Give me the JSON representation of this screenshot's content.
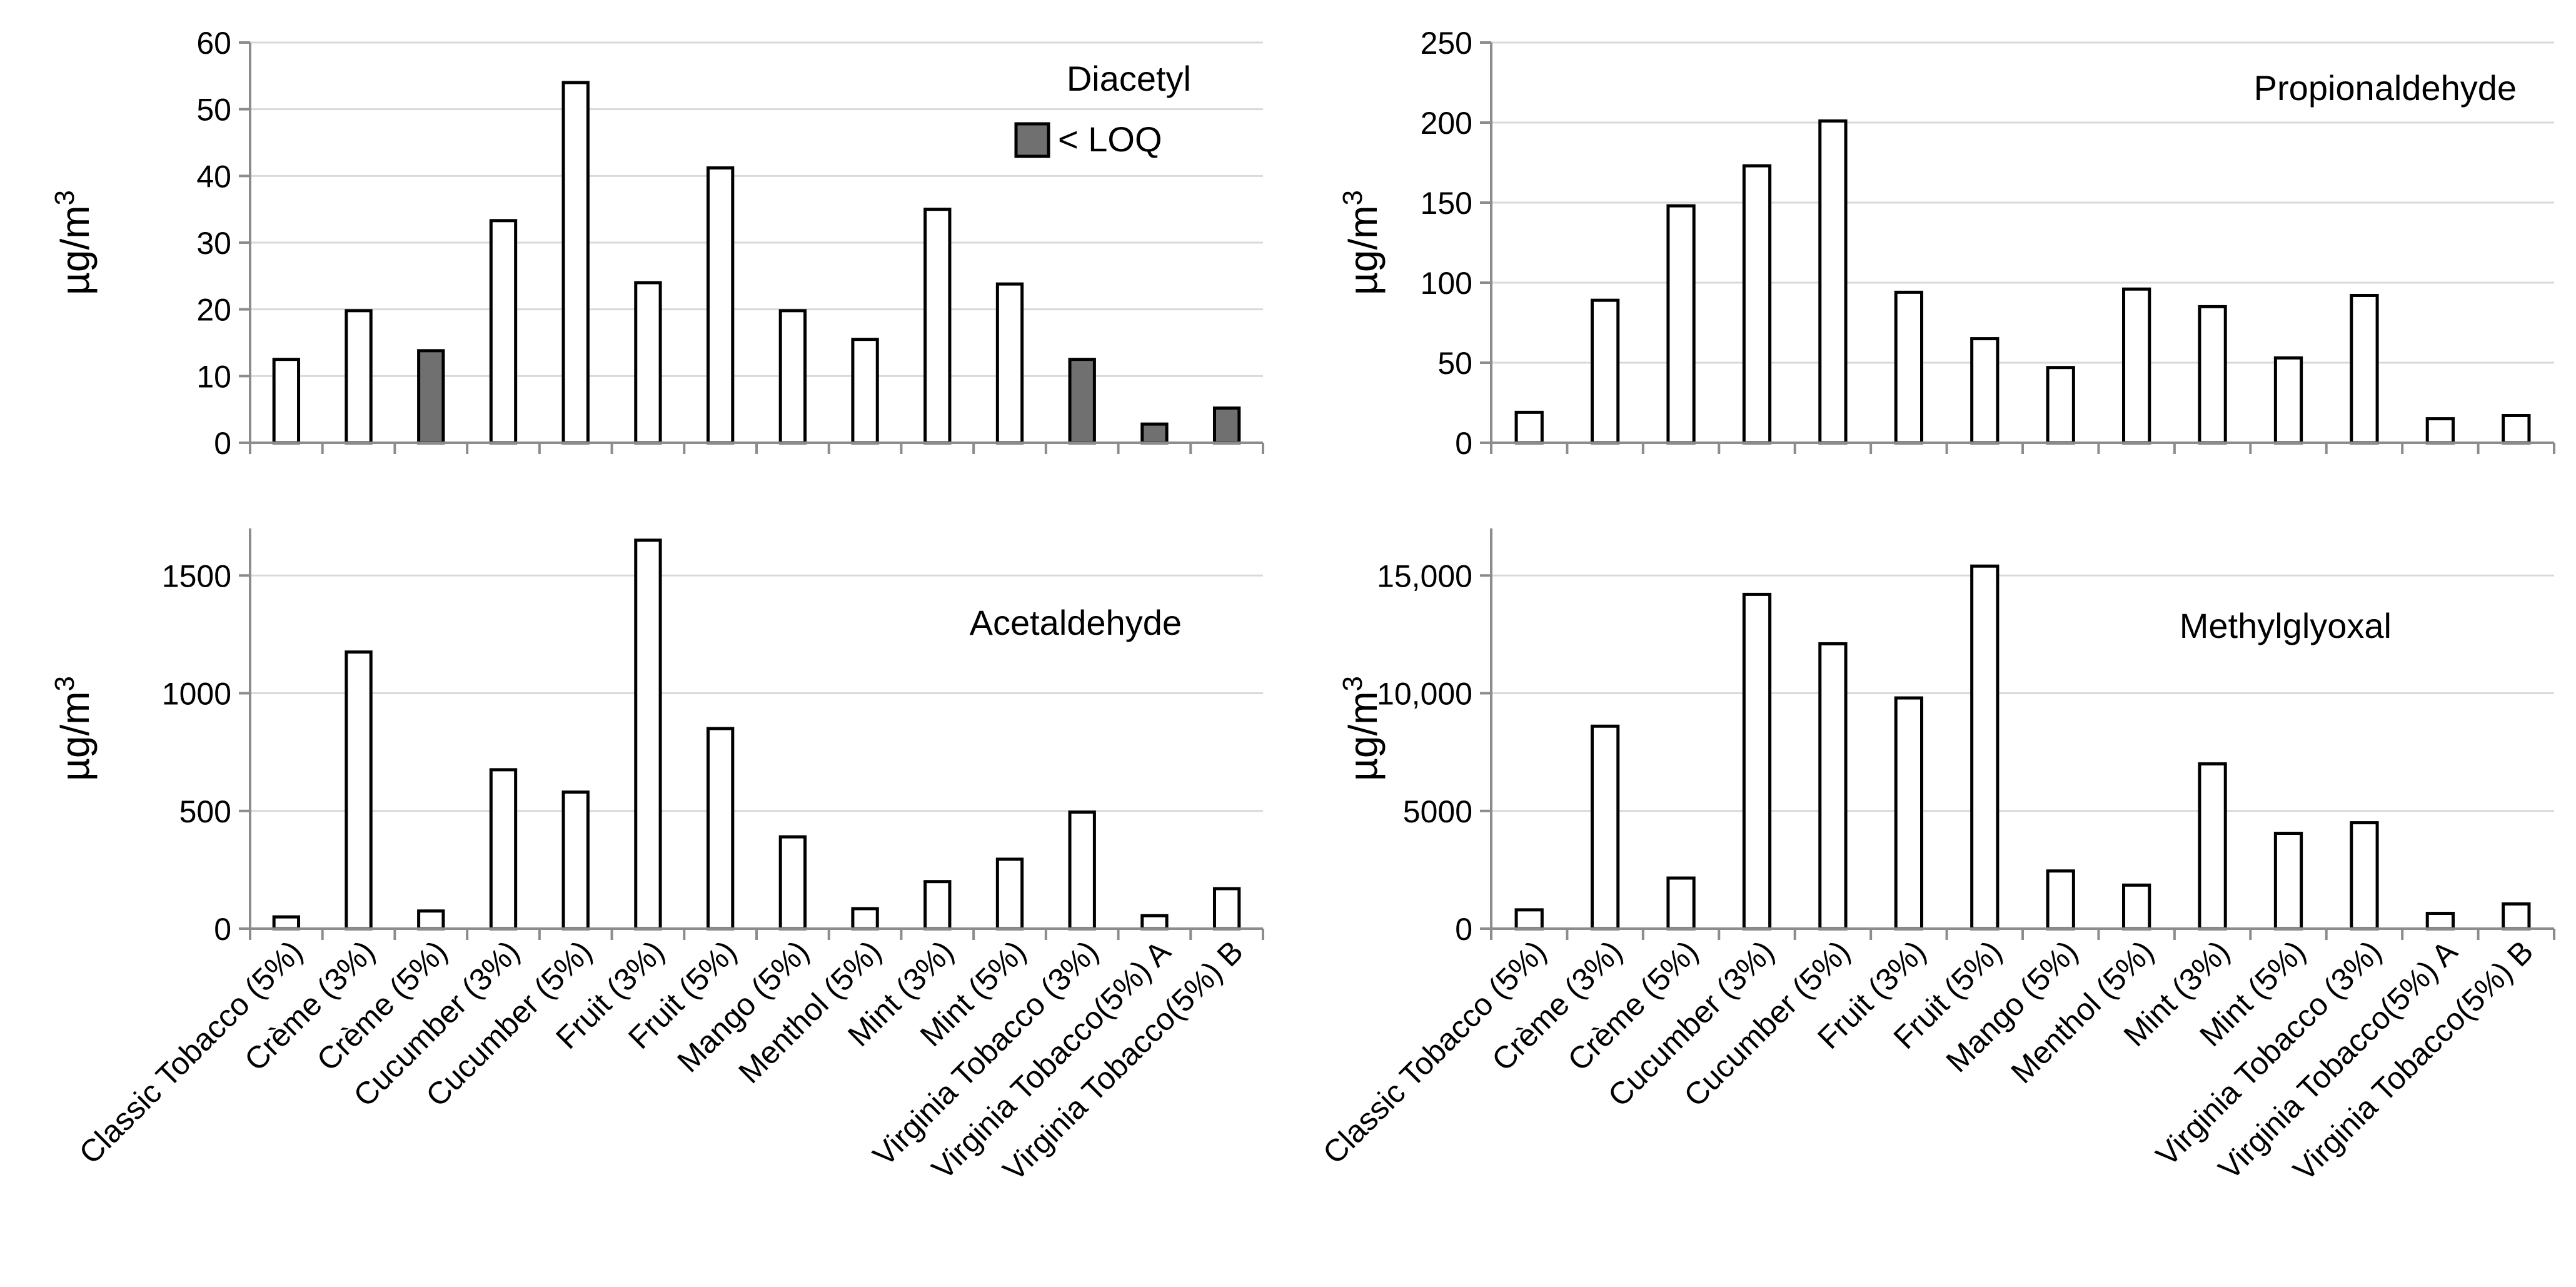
{
  "colors": {
    "bar_default": "#ffffff",
    "bar_below_loq": "#707070",
    "bar_edge": "#000000",
    "grid": "#d9d9d9",
    "axis": "#8c8c8c"
  },
  "chart_data": [
    {
      "type": "bar",
      "title": "Diacetyl",
      "ylabel": "µg/m³",
      "ylim": [
        0,
        60
      ],
      "yticks": [
        "0",
        "10",
        "20",
        "30",
        "40",
        "50",
        "60"
      ],
      "grid": true,
      "legend": {
        "label": "< LOQ",
        "position": "top-right"
      },
      "categories": [
        "Classic Tobacco (5%)",
        "Crème (3%)",
        "Crème (5%)",
        "Cucumber (3%)",
        "Cucumber (5%)",
        "Fruit (3%)",
        "Fruit (5%)",
        "Mango (5%)",
        "Menthol (5%)",
        "Mint (3%)",
        "Mint (5%)",
        "Virginia Tobacco (3%)",
        "Virginia Tobacco(5%) A",
        "Virginia Tobacco(5%) B"
      ],
      "values": [
        12.5,
        19.8,
        13.8,
        33.3,
        54.0,
        24.0,
        41.2,
        19.8,
        15.5,
        35.0,
        23.8,
        12.5,
        2.8,
        5.2
      ],
      "below_loq": [
        false,
        false,
        true,
        false,
        false,
        false,
        false,
        false,
        false,
        false,
        false,
        true,
        true,
        true
      ]
    },
    {
      "type": "bar",
      "title": "Propionaldehyde",
      "ylabel": "µg/m³",
      "ylim": [
        0,
        250
      ],
      "yticks": [
        "0",
        "50",
        "100",
        "150",
        "200",
        "250"
      ],
      "grid": true,
      "categories": [
        "Classic Tobacco (5%)",
        "Crème (3%)",
        "Crème (5%)",
        "Cucumber (3%)",
        "Cucumber (5%)",
        "Fruit (3%)",
        "Fruit (5%)",
        "Mango (5%)",
        "Menthol (5%)",
        "Mint (3%)",
        "Mint (5%)",
        "Virginia Tobacco (3%)",
        "Virginia Tobacco(5%) A",
        "Virginia Tobacco(5%) B"
      ],
      "values": [
        19,
        89,
        148,
        173,
        201,
        94,
        65,
        47,
        96,
        85,
        53,
        92,
        15,
        17
      ]
    },
    {
      "type": "bar",
      "title": "Acetaldehyde",
      "ylabel": "µg/m³",
      "ylim": [
        0,
        1700
      ],
      "yticks": [
        "0",
        "500",
        "1000",
        "1500"
      ],
      "ytick_values": [
        0,
        500,
        1000,
        1500
      ],
      "grid": true,
      "categories": [
        "Classic Tobacco (5%)",
        "Crème (3%)",
        "Crème (5%)",
        "Cucumber (3%)",
        "Cucumber (5%)",
        "Fruit (3%)",
        "Fruit (5%)",
        "Mango (5%)",
        "Menthol (5%)",
        "Mint (3%)",
        "Mint (5%)",
        "Virginia Tobacco (3%)",
        "Virginia Tobacco(5%) A",
        "Virginia Tobacco(5%) B"
      ],
      "values": [
        50,
        1175,
        75,
        675,
        580,
        1650,
        850,
        390,
        85,
        200,
        295,
        495,
        55,
        170
      ]
    },
    {
      "type": "bar",
      "title": "Methylglyoxal",
      "ylabel": "µg/m³",
      "ylim": [
        0,
        17000
      ],
      "yticks": [
        "0",
        "5000",
        "10,000",
        "15,000"
      ],
      "ytick_values": [
        0,
        5000,
        10000,
        15000
      ],
      "grid": true,
      "categories": [
        "Classic Tobacco (5%)",
        "Crème (3%)",
        "Crème (5%)",
        "Cucumber (3%)",
        "Cucumber (5%)",
        "Fruit (3%)",
        "Fruit (5%)",
        "Mango (5%)",
        "Menthol (5%)",
        "Mint (3%)",
        "Mint (5%)",
        "Virginia Tobacco (3%)",
        "Virginia Tobacco(5%) A",
        "Virginia Tobacco(5%) B"
      ],
      "values": [
        800,
        8600,
        2150,
        14200,
        12100,
        9800,
        15400,
        2450,
        1850,
        7000,
        4050,
        4500,
        650,
        1050
      ]
    }
  ]
}
